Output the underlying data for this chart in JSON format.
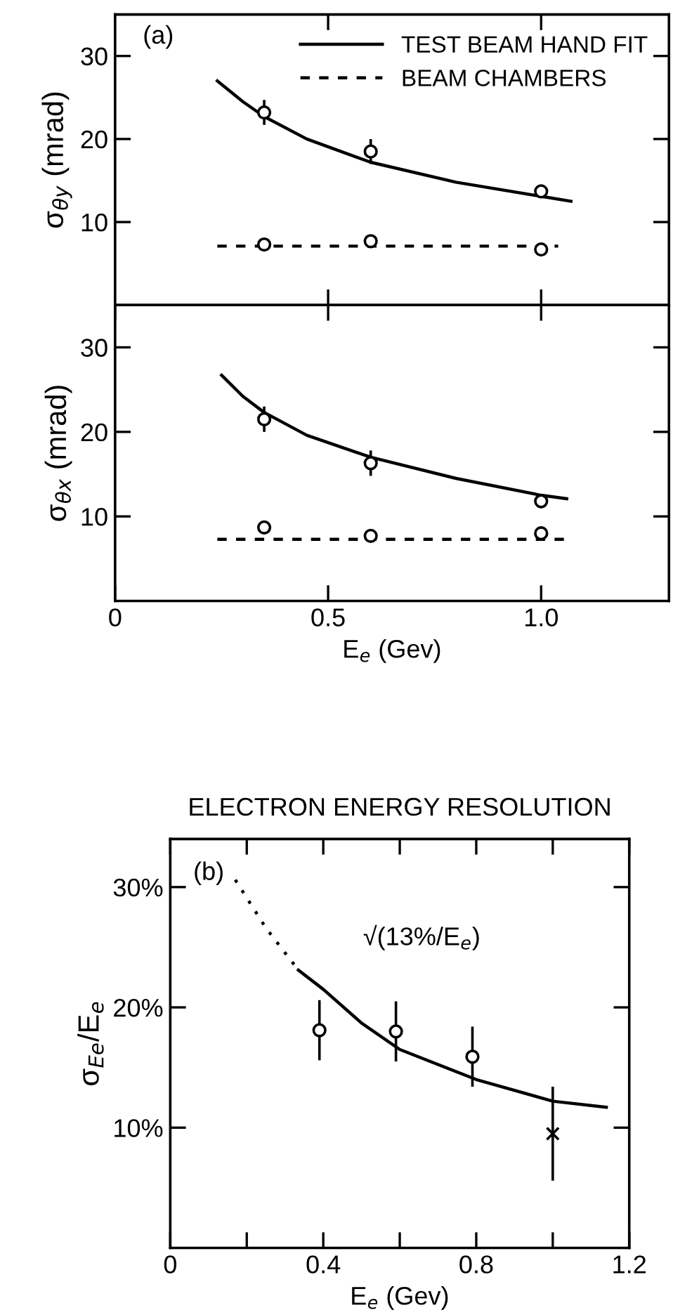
{
  "chart_data": [
    {
      "type": "line",
      "ylabel": "σ$_{θy}$ (mrad)",
      "annotations": [
        "(a)"
      ],
      "xlim": [
        0,
        1.3
      ],
      "ylim": [
        0,
        35
      ],
      "xticks": [
        {
          "value": 0.5,
          "label": null
        },
        {
          "value": 1.0,
          "label": null
        }
      ],
      "yticks": [
        10,
        20,
        30
      ],
      "tick_labels": "y",
      "legend": "top right",
      "series": [
        {
          "name": "TEST BEAM HAND FIT",
          "color": "#000000",
          "line_style": "solid",
          "x": [
            0.24,
            0.3,
            0.35,
            0.45,
            0.6,
            0.8,
            1.0,
            1.07
          ],
          "values": [
            27,
            24.5,
            22.7,
            20,
            17.2,
            14.8,
            13.1,
            12.5
          ]
        },
        {
          "name": "BEAM CHAMBERS",
          "color": "#000000",
          "line_style": "dashed",
          "x": [
            0.24,
            1.04
          ],
          "values": [
            7.1,
            7.1
          ]
        },
        {
          "type": "scatter",
          "color": "#000000",
          "marker": "circle",
          "x": [
            0.35,
            0.6,
            1.0
          ],
          "values": [
            23.2,
            18.5,
            13.7
          ],
          "errors": [
            1.5,
            1.5,
            0.7
          ]
        },
        {
          "type": "scatter",
          "color": "#000000",
          "marker": "circle",
          "x": [
            0.35,
            0.6,
            1.0
          ],
          "values": [
            7.3,
            7.7,
            6.7
          ]
        }
      ]
    },
    {
      "type": "line",
      "xlabel": "E$_{e}$ (Gev)",
      "ylabel": "σ$_{θx}$ (mrad)",
      "xlim": [
        0,
        1.3
      ],
      "ylim": [
        0,
        35
      ],
      "xticks": [
        0,
        0.5,
        {
          "value": 1.0,
          "label": "1.0"
        }
      ],
      "yticks": [
        10,
        20,
        30
      ],
      "series": [
        {
          "color": "#000000",
          "line_style": "solid",
          "x": [
            0.25,
            0.3,
            0.35,
            0.45,
            0.6,
            0.8,
            1.0,
            1.06
          ],
          "values": [
            26.7,
            24.2,
            22.3,
            19.6,
            17,
            14.5,
            12.5,
            12.1
          ]
        },
        {
          "color": "#000000",
          "line_style": "dashed",
          "x": [
            0.24,
            1.06
          ],
          "values": [
            7.3,
            7.3
          ]
        },
        {
          "type": "scatter",
          "color": "#000000",
          "marker": "circle",
          "x": [
            0.35,
            0.6,
            1.0
          ],
          "values": [
            21.5,
            16.3,
            11.8
          ],
          "errors": [
            1.5,
            1.5,
            0.8
          ]
        },
        {
          "type": "scatter",
          "color": "#000000",
          "marker": "circle",
          "x": [
            0.35,
            0.6,
            1.0
          ],
          "values": [
            8.7,
            7.7,
            8.0
          ]
        }
      ]
    },
    {
      "type": "line",
      "title": "ELECTRON ENERGY RESOLUTION",
      "xlabel": "E$_{e}$ (Gev)",
      "ylabel": "σ$_{Ee}$/E$_{e}$",
      "annotations": [
        "(b)",
        "√(13%/E$_{e}$)"
      ],
      "xlim": [
        0,
        1.2
      ],
      "ylim": [
        0,
        34
      ],
      "xticks": [
        0,
        {
          "value": 0.2,
          "label": null
        },
        0.4,
        {
          "value": 0.6,
          "label": null
        },
        0.8,
        {
          "value": 1.0,
          "label": null
        },
        1.2
      ],
      "yticks": [
        {
          "value": 10,
          "label": "10%"
        },
        {
          "value": 20,
          "label": "20%"
        },
        {
          "value": 30,
          "label": "30%"
        }
      ],
      "series": [
        {
          "color": "#000000",
          "line_style": "dotted",
          "x": [
            0.17,
            0.25,
            0.335
          ],
          "values": [
            30.6,
            26.6,
            23.1
          ]
        },
        {
          "color": "#000000",
          "line_style": "solid",
          "x": [
            0.335,
            0.4,
            0.5,
            0.6,
            0.8,
            1.0,
            1.14
          ],
          "values": [
            23.1,
            21.5,
            18.7,
            16.5,
            14,
            12.2,
            11.7
          ]
        },
        {
          "type": "scatter",
          "color": "#000000",
          "marker": "circle",
          "x": [
            0.39,
            0.59,
            0.79
          ],
          "values": [
            18.1,
            18.0,
            15.9
          ],
          "errors": [
            2.5,
            2.5,
            2.5
          ]
        },
        {
          "type": "scatter",
          "color": "#000000",
          "marker": "cross",
          "x": [
            1.0
          ],
          "values": [
            9.5
          ],
          "errors": [
            3.9
          ]
        }
      ]
    }
  ]
}
